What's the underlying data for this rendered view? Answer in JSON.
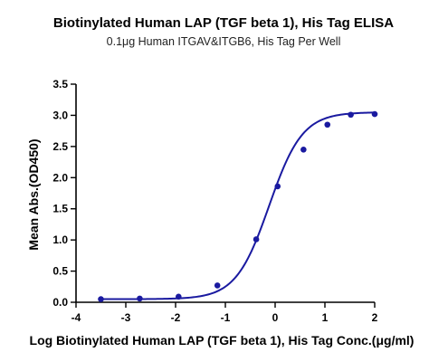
{
  "chart_data": {
    "type": "scatter",
    "title": "Biotinylated Human LAP (TGF beta 1), His Tag ELISA",
    "subtitle": "0.1μg Human ITGAV&ITGB6, His Tag Per Well",
    "xlabel": "Log Biotinylated Human LAP (TGF beta 1), His Tag Conc.(μg/ml)",
    "ylabel": "Mean Abs.(OD450)",
    "xlim": [
      -4,
      2
    ],
    "ylim": [
      0,
      3.5
    ],
    "xticks": [
      "-4",
      "-3",
      "-2",
      "-1",
      "0",
      "1",
      "2"
    ],
    "yticks": [
      "0.0",
      "0.5",
      "1.0",
      "1.5",
      "2.0",
      "2.5",
      "3.0",
      "3.5"
    ],
    "grid": false,
    "legend": "none",
    "color": "#1a1aa0",
    "series": [
      {
        "x": [
          -3.5,
          -2.72,
          -1.94,
          -1.16,
          -0.38,
          0.05,
          0.57,
          1.05,
          1.52,
          2.0
        ],
        "y": [
          0.05,
          0.06,
          0.09,
          0.27,
          1.01,
          1.86,
          2.45,
          2.85,
          3.01,
          3.02
        ]
      }
    ],
    "fit_curve": {
      "type": "4PL",
      "bottom": 0.05,
      "top": 3.05,
      "log_ec50": -0.12,
      "hill_slope": 1.3
    }
  }
}
